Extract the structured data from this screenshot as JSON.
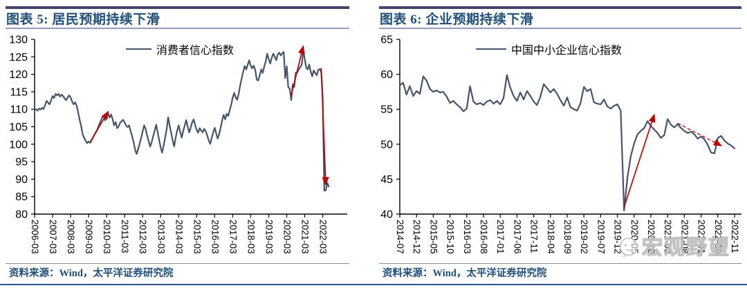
{
  "page": {
    "watermark": {
      "text": "宏观野望",
      "icon": "smiley-face-icon"
    },
    "colors": {
      "line": "#44546A",
      "arrow": "#C00000",
      "title_text": "#1F4E79",
      "source_text": "#1F4E79",
      "header_thick_rule": "#40456B",
      "header_thin_rule": "#9898BB",
      "source_rule": "#8C8CA8",
      "page_bottom_rule": "#2F5496",
      "axis": "#000000"
    }
  },
  "chart_data": [
    {
      "type": "line",
      "title": "图表 5: 居民预期持续下滑",
      "legend": "消费者信心指数",
      "source": "资料来源：Wind，太平洋证券研究院",
      "ylim": [
        80,
        130
      ],
      "y_step": 5,
      "grid": false,
      "legend_position": "top-center",
      "x_start": "2006-03",
      "x_tick_every_months": 12,
      "x_tick_labels": [
        "2006-03",
        "2007-03",
        "2008-03",
        "2009-03",
        "2010-03",
        "2011-03",
        "2012-03",
        "2013-03",
        "2014-03",
        "2015-03",
        "2016-03",
        "2017-03",
        "2018-03",
        "2019-03",
        "2020-03",
        "2021-03",
        "2022-03"
      ],
      "values": [
        109.8,
        110.0,
        109.6,
        110.2,
        109.9,
        110.4,
        110.1,
        111.2,
        112.4,
        111.9,
        111.4,
        112.6,
        113.8,
        113.2,
        114.4,
        114.0,
        114.4,
        113.6,
        114.2,
        113.8,
        113.1,
        112.6,
        113.3,
        114.0,
        113.4,
        112.2,
        111.4,
        112.0,
        111.0,
        109.2,
        107.0,
        105.2,
        103.0,
        101.8,
        101.0,
        100.3,
        100.8,
        100.4,
        101.2,
        102.0,
        102.8,
        103.6,
        104.4,
        105.6,
        106.6,
        107.6,
        108.0,
        106.8,
        107.9,
        108.8,
        107.6,
        108.5,
        107.2,
        105.4,
        106.3,
        104.6,
        105.1,
        106.1,
        106.6,
        107.0,
        106.2,
        105.3,
        104.9,
        105.4,
        103.7,
        102.3,
        100.6,
        98.4,
        97.2,
        98.6,
        100.2,
        101.8,
        103.6,
        105.4,
        104.3,
        102.4,
        100.9,
        99.3,
        100.6,
        102.2,
        103.9,
        105.6,
        103.4,
        101.2,
        99.1,
        97.6,
        99.6,
        101.9,
        104.4,
        107.7,
        105.3,
        103.2,
        101.1,
        99.4,
        101.9,
        103.9,
        105.4,
        103.6,
        101.9,
        103.7,
        105.3,
        106.9,
        105.1,
        103.4,
        104.7,
        106.3,
        107.1,
        105.4,
        104.1,
        103.3,
        104.6,
        103.9,
        103.4,
        104.4,
        103.7,
        102.6,
        101.1,
        100.1,
        101.8,
        103.3,
        104.7,
        103.1,
        101.6,
        102.9,
        104.8,
        106.9,
        108.4,
        107.1,
        108.7,
        108.1,
        109.7,
        111.3,
        113.3,
        114.7,
        113.4,
        112.7,
        114.4,
        116.9,
        118.9,
        120.7,
        122.4,
        121.4,
        122.7,
        124.0,
        122.4,
        121.7,
        122.5,
        121.2,
        118.5,
        118.2,
        119.7,
        121.4,
        120.4,
        122.2,
        123.7,
        125.9,
        124.4,
        123.1,
        124.7,
        125.9,
        125.1,
        124.0,
        125.7,
        126.2,
        125.4,
        126.0,
        126.4,
        118.9,
        122.3,
        116.4,
        115.8,
        112.6,
        117.2,
        116.4,
        120.5,
        120.5,
        121.4,
        122.1,
        122.8,
        127.0,
        124.3,
        121.9,
        121.4,
        122.8,
        120.7,
        119.4,
        121.1,
        120.4,
        119.7,
        121.3,
        121.5,
        120.5,
        113.2,
        86.7,
        86.8,
        88.9,
        87.9
      ],
      "arrows": [
        {
          "from_x": "2009-04",
          "from_y": 100.6,
          "to_x": "2010-04",
          "to_y": 109.3,
          "style": "solid"
        },
        {
          "from_x": "2020-06",
          "from_y": 114.0,
          "to_x": "2021-02",
          "to_y": 128.0,
          "style": "solid"
        },
        {
          "from_x": "2022-02",
          "from_y": 121.8,
          "to_x": "2022-05",
          "to_y": 88.5,
          "style": "solid"
        }
      ]
    },
    {
      "type": "line",
      "title": "图表 6: 企业预期持续下滑",
      "legend": "中国中小企业信心指数",
      "source": "资料来源：Wind，太平洋证券研究院",
      "ylim": [
        40,
        65
      ],
      "y_step": 5,
      "grid": false,
      "legend_position": "top-center",
      "x_start": "2014-07",
      "x_tick_every_months": 5,
      "x_tick_labels": [
        "2014-07",
        "2014-12",
        "2015-05",
        "2015-10",
        "2016-03",
        "2016-08",
        "2017-01",
        "2017-06",
        "2017-11",
        "2018-04",
        "2018-09",
        "2019-02",
        "2019-07",
        "2019-12",
        "2020-05",
        "2020-10",
        "2021-03",
        "2021-08",
        "2022-01",
        "2022-06",
        "2022-11"
      ],
      "values": [
        58.4,
        58.8,
        57.1,
        58.3,
        56.9,
        57.6,
        57.2,
        59.7,
        59.1,
        57.9,
        57.5,
        57.7,
        57.4,
        57.5,
        56.8,
        55.9,
        56.2,
        55.7,
        55.3,
        54.7,
        55.1,
        58.3,
        56.1,
        55.7,
        55.9,
        55.6,
        56.1,
        56.3,
        55.8,
        56.2,
        55.7,
        56.6,
        59.9,
        58.1,
        56.9,
        56.2,
        57.4,
        56.4,
        57.6,
        56.9,
        56.1,
        55.6,
        56.8,
        58.6,
        58.0,
        57.4,
        57.9,
        57.2,
        56.3,
        55.5,
        56.7,
        55.3,
        55.0,
        54.8,
        55.9,
        58.2,
        57.6,
        57.9,
        56.0,
        55.8,
        55.7,
        56.4,
        55.4,
        55.1,
        55.5,
        55.7,
        54.8,
        40.5,
        45.2,
        48.3,
        50.1,
        51.4,
        51.9,
        52.3,
        53.3,
        52.6,
        52.1,
        51.6,
        50.9,
        51.3,
        53.6,
        52.8,
        52.4,
        52.9,
        52.3,
        51.9,
        51.6,
        51.8,
        51.4,
        50.8,
        51.1,
        50.7,
        49.9,
        48.8,
        48.7,
        50.9,
        51.2,
        50.5,
        50.1,
        49.8,
        49.4
      ],
      "arrows": [
        {
          "from_x": "2020-02",
          "from_y": 41.0,
          "to_x": "2020-11",
          "to_y": 54.2,
          "style": "solid"
        },
        {
          "from_x": "2021-06",
          "from_y": 53.0,
          "to_x": "2022-07",
          "to_y": 49.8,
          "style": "dashed"
        }
      ]
    }
  ]
}
